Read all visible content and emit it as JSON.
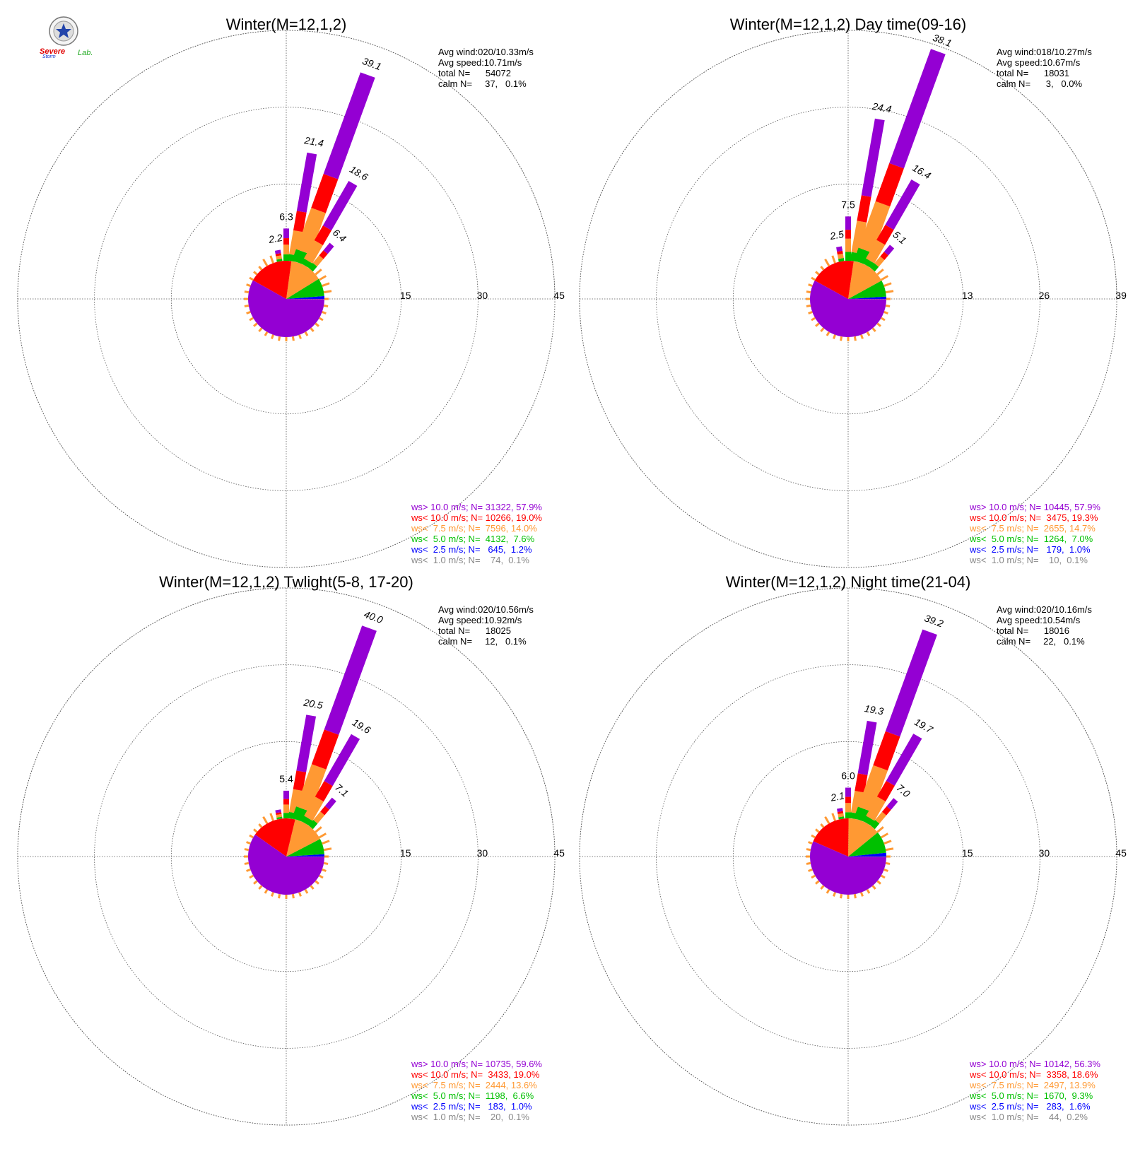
{
  "logo": {
    "text_part1": "Severe",
    "text_part2": "Storm",
    "text_part3": "Lab."
  },
  "legend_colors": {
    "ws_gt_10": "#9400d3",
    "ws_lt_10": "#ff0000",
    "ws_lt_7_5": "#ff9933",
    "ws_lt_5": "#00c000",
    "ws_lt_2_5": "#0000ff",
    "ws_lt_1": "#888888"
  },
  "chart_data": [
    {
      "type": "wind-rose",
      "title": "Winter(M=12,1,2)",
      "ring_labels": [
        "15",
        "30",
        "45"
      ],
      "rmax": 45,
      "stats": [
        "Avg wind:020/10.33m/s",
        "Avg speed:10.71m/s",
        "total N=      54072",
        "calm N=     37,   0.1%"
      ],
      "legend": [
        "ws> 10.0 m/s; N= 31322, 57.9%",
        "ws< 10.0 m/s; N= 10266, 19.0%",
        "ws<  7.5 m/s; N=  7596, 14.0%",
        "ws<  5.0 m/s; N=  4132,  7.6%",
        "ws<  2.5 m/s; N=   645,  1.2%",
        "ws<  1.0 m/s; N=    74,  0.1%"
      ],
      "pie": [
        57.9,
        19.0,
        14.0,
        7.6,
        1.2,
        0.1
      ],
      "bars": [
        {
          "dir": 0,
          "value": 6.3,
          "label": "6.3"
        },
        {
          "dir": -10,
          "value": 2.2,
          "label": "2.2"
        },
        {
          "dir": 10,
          "value": 21.4,
          "label": "21.4"
        },
        {
          "dir": 20,
          "value": 39.1,
          "label": "39.1"
        },
        {
          "dir": 30,
          "value": 18.6,
          "label": "18.6"
        },
        {
          "dir": 40,
          "value": 6.4,
          "label": "6.4"
        }
      ]
    },
    {
      "type": "wind-rose",
      "title": "Winter(M=12,1,2) Day time(09-16)",
      "ring_labels": [
        "13",
        "26",
        "39"
      ],
      "rmax": 39,
      "stats": [
        "Avg wind:018/10.27m/s",
        "Avg speed:10.67m/s",
        "total N=      18031",
        "calm N=      3,   0.0%"
      ],
      "legend": [
        "ws> 10.0 m/s; N= 10445, 57.9%",
        "ws< 10.0 m/s; N=  3475, 19.3%",
        "ws<  7.5 m/s; N=  2655, 14.7%",
        "ws<  5.0 m/s; N=  1264,  7.0%",
        "ws<  2.5 m/s; N=   179,  1.0%",
        "ws<  1.0 m/s; N=    10,  0.1%"
      ],
      "pie": [
        57.9,
        19.3,
        14.7,
        7.0,
        1.0,
        0.1
      ],
      "bars": [
        {
          "dir": 0,
          "value": 7.5,
          "label": "7.5"
        },
        {
          "dir": -10,
          "value": 2.5,
          "label": "2.5"
        },
        {
          "dir": 10,
          "value": 24.4,
          "label": "24.4"
        },
        {
          "dir": 20,
          "value": 38.1,
          "label": "38.1"
        },
        {
          "dir": 30,
          "value": 16.4,
          "label": "16.4"
        },
        {
          "dir": 40,
          "value": 5.1,
          "label": "5.1"
        }
      ]
    },
    {
      "type": "wind-rose",
      "title": "Winter(M=12,1,2) Twlight(5-8, 17-20)",
      "ring_labels": [
        "15",
        "30",
        "45"
      ],
      "rmax": 45,
      "stats": [
        "Avg wind:020/10.56m/s",
        "Avg speed:10.92m/s",
        "total N=      18025",
        "calm N=     12,   0.1%"
      ],
      "legend": [
        "ws> 10.0 m/s; N= 10735, 59.6%",
        "ws< 10.0 m/s; N=  3433, 19.0%",
        "ws<  7.5 m/s; N=  2444, 13.6%",
        "ws<  5.0 m/s; N=  1198,  6.6%",
        "ws<  2.5 m/s; N=   183,  1.0%",
        "ws<  1.0 m/s; N=    20,  0.1%"
      ],
      "pie": [
        59.6,
        19.0,
        13.6,
        6.6,
        1.0,
        0.1
      ],
      "bars": [
        {
          "dir": 0,
          "value": 5.4,
          "label": "5.4"
        },
        {
          "dir": -10,
          "value": 1.8,
          "label": ""
        },
        {
          "dir": 10,
          "value": 20.5,
          "label": "20.5"
        },
        {
          "dir": 20,
          "value": 40.0,
          "label": "40.0"
        },
        {
          "dir": 30,
          "value": 19.6,
          "label": "19.6"
        },
        {
          "dir": 40,
          "value": 7.1,
          "label": "7.1"
        }
      ]
    },
    {
      "type": "wind-rose",
      "title": "Winter(M=12,1,2) Night time(21-04)",
      "ring_labels": [
        "15",
        "30",
        "45"
      ],
      "rmax": 45,
      "stats": [
        "Avg wind:020/10.16m/s",
        "Avg speed:10.54m/s",
        "total N=      18016",
        "calm N=     22,   0.1%"
      ],
      "legend": [
        "ws> 10.0 m/s; N= 10142, 56.3%",
        "ws< 10.0 m/s; N=  3358, 18.6%",
        "ws<  7.5 m/s; N=  2497, 13.9%",
        "ws<  5.0 m/s; N=  1670,  9.3%",
        "ws<  2.5 m/s; N=   283,  1.6%",
        "ws<  1.0 m/s; N=    44,  0.2%"
      ],
      "pie": [
        56.3,
        18.6,
        13.9,
        9.3,
        1.6,
        0.2
      ],
      "bars": [
        {
          "dir": 0,
          "value": 6.0,
          "label": "6.0"
        },
        {
          "dir": -10,
          "value": 2.1,
          "label": "2.1"
        },
        {
          "dir": 10,
          "value": 19.3,
          "label": "19.3"
        },
        {
          "dir": 20,
          "value": 39.2,
          "label": "39.2"
        },
        {
          "dir": 30,
          "value": 19.7,
          "label": "19.7"
        },
        {
          "dir": 40,
          "value": 7.0,
          "label": "7.0"
        }
      ]
    }
  ]
}
